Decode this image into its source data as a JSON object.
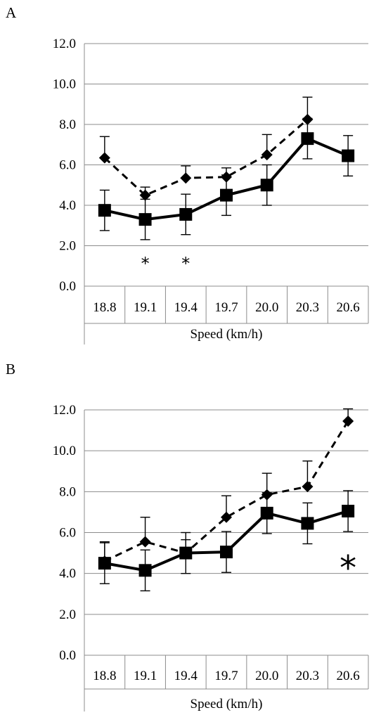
{
  "panels": [
    {
      "label": "A"
    },
    {
      "label": "B"
    }
  ],
  "chart_data": [
    {
      "type": "line",
      "panel": "A",
      "categories": [
        "18.8",
        "19.1",
        "19.4",
        "19.7",
        "20.0",
        "20.3",
        "20.6"
      ],
      "xlabel": "Speed (km/h)",
      "ylabel": "",
      "ylim": [
        0,
        12
      ],
      "yticks": [
        "0.0",
        "2.0",
        "4.0",
        "6.0",
        "8.0",
        "10.0",
        "12.0"
      ],
      "grid": true,
      "series": [
        {
          "style": "solid-square",
          "values": [
            3.75,
            3.3,
            3.55,
            4.5,
            5.0,
            7.3,
            6.45
          ],
          "error": [
            1.0,
            1.0,
            1.0,
            1.0,
            1.0,
            1.0,
            1.0
          ]
        },
        {
          "style": "dashed-diamond",
          "values": [
            6.35,
            4.5,
            5.35,
            5.4,
            6.5,
            8.25,
            null
          ],
          "error": [
            1.05,
            0.4,
            0.6,
            0.45,
            1.0,
            1.1,
            null
          ]
        }
      ],
      "annotations": [
        {
          "text": "*",
          "category": "19.1"
        },
        {
          "text": "*",
          "category": "19.4"
        }
      ]
    },
    {
      "type": "line",
      "panel": "B",
      "categories": [
        "18.8",
        "19.1",
        "19.4",
        "19.7",
        "20.0",
        "20.3",
        "20.6"
      ],
      "xlabel": "Speed (km/h)",
      "ylabel": "",
      "ylim": [
        0,
        12
      ],
      "yticks": [
        "0.0",
        "2.0",
        "4.0",
        "6.0",
        "8.0",
        "10.0",
        "12.0"
      ],
      "grid": true,
      "series": [
        {
          "style": "solid-square",
          "values": [
            4.5,
            4.15,
            5.0,
            5.05,
            6.95,
            6.45,
            7.05
          ],
          "error": [
            1.0,
            1.0,
            1.0,
            1.0,
            1.0,
            1.0,
            1.0
          ]
        },
        {
          "style": "dashed-diamond",
          "values": [
            4.6,
            5.55,
            5.0,
            6.75,
            7.85,
            8.25,
            11.45
          ],
          "error": [
            0.95,
            1.2,
            0.65,
            1.05,
            1.05,
            1.25,
            0.6
          ]
        }
      ],
      "annotations": [
        {
          "text": "*",
          "category": "20.6"
        }
      ]
    }
  ]
}
